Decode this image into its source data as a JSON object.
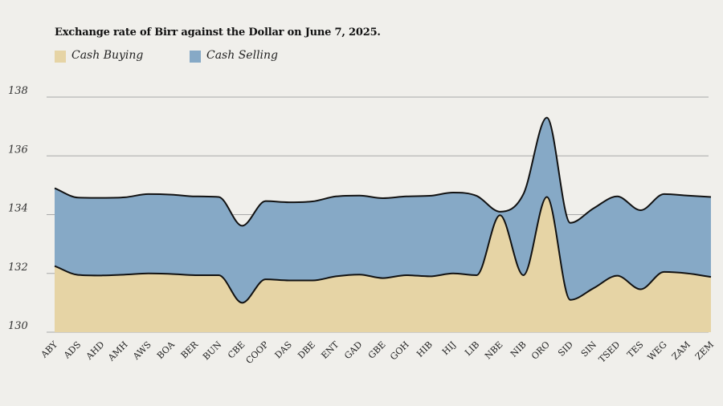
{
  "chart_data": {
    "type": "area",
    "title": "Exchange rate of Birr against the Dollar on June 7, 2025.",
    "xlabel": "",
    "ylabel": "",
    "ylim": [
      130,
      138
    ],
    "yticks": [
      130,
      132,
      134,
      136,
      138
    ],
    "grid": true,
    "legend_position": "top-left",
    "categories": [
      "ABY",
      "ADS",
      "AHD",
      "AMH",
      "AWS",
      "BOA",
      "BER",
      "BUN",
      "CBE",
      "COOP",
      "DAS",
      "DBE",
      "ENT",
      "GAD",
      "GBE",
      "GOH",
      "HIB",
      "HIJ",
      "LIB",
      "NBE",
      "NIB",
      "ORO",
      "SID",
      "SIN",
      "TSED",
      "TES",
      "WEG",
      "ZAM",
      "ZEM"
    ],
    "series": [
      {
        "name": "Cash Selling",
        "color": "#86a9c6",
        "values": [
          134.9,
          134.58,
          134.57,
          134.59,
          134.7,
          134.68,
          134.62,
          134.6,
          133.62,
          134.46,
          134.42,
          134.45,
          134.62,
          134.65,
          134.56,
          134.62,
          134.64,
          134.75,
          134.64,
          134.1,
          134.7,
          137.3,
          133.72,
          134.22,
          134.62,
          134.15,
          134.7,
          134.65,
          134.6
        ]
      },
      {
        "name": "Cash Buying",
        "color": "#e6d4a5",
        "values": [
          132.25,
          131.95,
          131.93,
          131.96,
          132.0,
          131.98,
          131.94,
          131.94,
          131.0,
          131.8,
          131.76,
          131.76,
          131.9,
          131.96,
          131.84,
          131.94,
          131.9,
          132.0,
          131.94,
          133.98,
          131.94,
          134.6,
          131.1,
          131.5,
          131.92,
          131.46,
          132.05,
          132.0,
          131.88
        ]
      }
    ]
  }
}
